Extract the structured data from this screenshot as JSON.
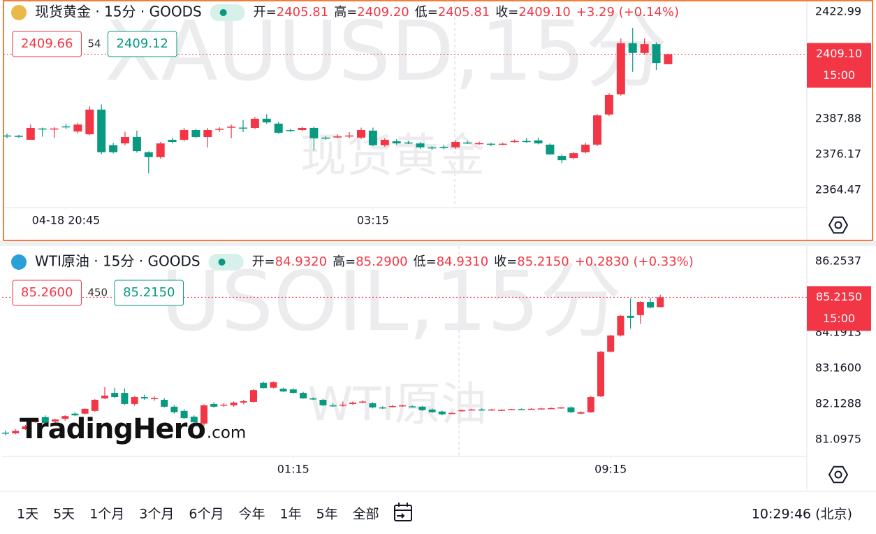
{
  "chart_data": [
    {
      "type": "candlestick",
      "title": "现货黄金 · 15分 · GOODS",
      "icon_color": "#e9b949",
      "ohlc_header": [
        {
          "label": "开=",
          "value": "2405.81"
        },
        {
          "label": "高=",
          "value": "2409.20"
        },
        {
          "label": "低=",
          "value": "2405.81"
        },
        {
          "label": "收=",
          "value": "2409.10"
        }
      ],
      "change": "+3.29 (+0.14%)",
      "bid": "2409.66",
      "spread": "54",
      "ask": "2409.12",
      "watermark": "XAUUSD,15分",
      "watermark_name": "现货黄金",
      "last_price": "2409.10",
      "countdown": "15:00",
      "up_color": "#f23645",
      "down_color": "#089981",
      "open": [
        2382.4,
        2382.3,
        2381.0,
        2384.7,
        2384.6,
        2385.4,
        2383.7,
        2382.8,
        2390.9,
        2379.2,
        2379.8,
        2381.9,
        2376.9,
        2375.3,
        2381.0,
        2381.0,
        2384.2,
        2381.9,
        2384.4,
        2385.1,
        2385.0,
        2384.9,
        2387.9,
        2386.3,
        2384.2,
        2384.2,
        2384.9,
        2381.7,
        2381.9,
        2382.2,
        2381.7,
        2384.0,
        2379.2,
        2380.5,
        2380.1,
        2379.8,
        2378.5,
        2378.6,
        2378.5,
        2380.1,
        2379.8,
        2379.7,
        2379.5,
        2380.3,
        2380.6,
        2380.8,
        2379.4,
        2375.7,
        2375.0,
        2376.9,
        2379.4,
        2389.3,
        2395.9,
        2412.7,
        2409.5,
        2412.4,
        2405.81
      ],
      "high": [
        2383.0,
        2382.6,
        2386.0,
        2385.0,
        2385.1,
        2386.3,
        2386.6,
        2392.0,
        2392.6,
        2380.0,
        2383.6,
        2384.0,
        2377.2,
        2380.3,
        2381.7,
        2384.9,
        2384.6,
        2384.9,
        2385.1,
        2386.0,
        2387.5,
        2388.5,
        2389.4,
        2386.8,
        2384.6,
        2385.3,
        2385.3,
        2382.2,
        2382.8,
        2383.5,
        2385.0,
        2385.0,
        2381.5,
        2381.2,
        2380.6,
        2380.3,
        2378.9,
        2379.3,
        2380.8,
        2380.6,
        2380.4,
        2380.0,
        2380.1,
        2381.1,
        2381.5,
        2381.7,
        2379.8,
        2376.2,
        2377.0,
        2380.0,
        2389.4,
        2396.3,
        2414.3,
        2417.7,
        2414.3,
        2413.0,
        2409.2
      ],
      "low": [
        2381.5,
        2381.6,
        2381.0,
        2382.0,
        2381.5,
        2384.5,
        2383.0,
        2382.5,
        2376.2,
        2376.5,
        2379.2,
        2376.8,
        2370.0,
        2374.8,
        2379.8,
        2380.5,
        2381.5,
        2378.5,
        2383.5,
        2381.5,
        2383.5,
        2384.5,
        2386.2,
        2383.0,
        2383.6,
        2383.8,
        2377.5,
        2381.0,
        2381.5,
        2381.5,
        2381.2,
        2378.9,
        2378.7,
        2379.4,
        2379.6,
        2378.0,
        2377.6,
        2378.0,
        2378.0,
        2379.6,
        2379.4,
        2378.9,
        2379.2,
        2380.0,
        2380.0,
        2379.5,
        2376.0,
        2373.3,
        2374.6,
        2376.5,
        2378.9,
        2388.8,
        2395.5,
        2403.3,
        2408.9,
        2403.9,
        2405.81
      ],
      "close": [
        2382.1,
        2382.0,
        2384.9,
        2384.4,
        2384.7,
        2385.1,
        2386.0,
        2390.9,
        2376.9,
        2376.9,
        2381.9,
        2377.3,
        2375.3,
        2379.8,
        2380.3,
        2384.2,
        2381.9,
        2384.2,
        2384.6,
        2385.3,
        2384.7,
        2387.9,
        2386.7,
        2383.3,
        2384.0,
        2384.9,
        2381.5,
        2381.6,
        2382.1,
        2382.4,
        2384.2,
        2379.2,
        2381.0,
        2379.8,
        2380.0,
        2378.5,
        2378.4,
        2378.5,
        2380.3,
        2380.0,
        2379.9,
        2379.5,
        2379.7,
        2380.6,
        2380.4,
        2379.8,
        2376.2,
        2374.3,
        2376.6,
        2379.4,
        2389.0,
        2395.7,
        2412.7,
        2409.5,
        2412.4,
        2406.2,
        2409.1
      ],
      "ylim": [
        2358.73,
        2426.89
      ],
      "yticks": [
        2422.99,
        2387.88,
        2376.17,
        2364.47
      ],
      "xticks": [
        {
          "value": 5,
          "label": "04-18 20:45"
        },
        {
          "value": 31,
          "label": "03:15"
        }
      ]
    },
    {
      "type": "candlestick",
      "title": "WTI原油 · 15分 · GOODS",
      "icon_color": "#2a9fd8",
      "ohlc_header": [
        {
          "label": "开=",
          "value": "84.9320"
        },
        {
          "label": "高=",
          "value": "85.2900"
        },
        {
          "label": "低=",
          "value": "84.9310"
        },
        {
          "label": "收=",
          "value": "85.2150"
        }
      ],
      "change": "+0.2830 (+0.33%)",
      "bid": "85.2600",
      "spread": "450",
      "ask": "85.2150",
      "watermark": "USOIL,15分",
      "watermark_name": "WTI原油",
      "last_price": "85.2150",
      "countdown": "15:00",
      "up_color": "#f23645",
      "down_color": "#089981",
      "open": [
        81.3,
        81.28,
        81.4,
        81.6,
        81.75,
        81.62,
        81.7,
        81.85,
        81.85,
        81.93,
        82.29,
        82.45,
        82.45,
        82.13,
        82.33,
        82.29,
        82.25,
        82.05,
        81.93,
        81.76,
        81.56,
        82.13,
        82.09,
        82.09,
        82.17,
        82.19,
        82.74,
        82.6,
        82.57,
        82.55,
        82.45,
        82.29,
        82.25,
        82.09,
        82.1,
        82.13,
        82.19,
        82.15,
        82.03,
        82.05,
        82.07,
        82.06,
        82.05,
        81.97,
        81.91,
        81.85,
        81.92,
        81.95,
        81.97,
        81.96,
        81.95,
        81.96,
        81.98,
        81.97,
        81.99,
        82.0,
        82.0,
        82.03,
        81.85,
        81.89,
        82.35,
        83.64,
        84.11,
        84.68,
        84.7,
        85.08,
        84.932
      ],
      "high": [
        81.36,
        81.4,
        81.52,
        81.72,
        81.8,
        81.7,
        81.8,
        81.9,
        82.0,
        82.27,
        82.62,
        82.6,
        82.58,
        82.35,
        82.4,
        82.35,
        82.3,
        82.1,
        81.98,
        81.8,
        82.12,
        82.18,
        82.15,
        82.2,
        82.25,
        82.56,
        82.78,
        82.78,
        82.6,
        82.58,
        82.48,
        82.32,
        82.28,
        82.15,
        82.2,
        82.2,
        82.24,
        82.18,
        82.06,
        82.1,
        82.11,
        82.09,
        82.08,
        82.0,
        81.94,
        81.88,
        81.97,
        81.99,
        82.0,
        81.99,
        81.98,
        81.99,
        82.0,
        82.01,
        82.02,
        82.03,
        82.04,
        82.06,
        81.92,
        82.36,
        83.66,
        84.13,
        84.7,
        85.18,
        85.1,
        85.2,
        85.29
      ],
      "low": [
        81.22,
        81.25,
        81.38,
        81.58,
        81.55,
        81.58,
        81.65,
        81.78,
        81.82,
        81.9,
        82.27,
        82.3,
        82.1,
        82.08,
        82.25,
        82.22,
        82.03,
        81.85,
        81.7,
        81.58,
        81.5,
        82.02,
        82.05,
        82.05,
        82.12,
        82.17,
        82.58,
        82.58,
        82.48,
        82.43,
        82.28,
        82.25,
        82.07,
        82.05,
        82.05,
        82.1,
        82.15,
        82.0,
        81.99,
        82.03,
        82.05,
        82.03,
        81.93,
        81.87,
        81.8,
        81.84,
        81.9,
        81.94,
        81.95,
        81.94,
        81.93,
        81.95,
        81.96,
        81.96,
        81.98,
        81.99,
        81.99,
        81.87,
        81.83,
        81.87,
        82.33,
        83.62,
        84.08,
        84.31,
        84.45,
        84.9,
        84.931
      ],
      "close": [
        81.28,
        81.35,
        81.48,
        81.68,
        81.58,
        81.68,
        81.78,
        81.8,
        81.99,
        82.25,
        82.37,
        82.33,
        82.13,
        82.33,
        82.29,
        82.3,
        82.05,
        81.89,
        81.72,
        81.6,
        82.09,
        82.05,
        82.11,
        82.17,
        82.21,
        82.53,
        82.59,
        82.76,
        82.49,
        82.45,
        82.29,
        82.27,
        82.09,
        82.08,
        82.11,
        82.17,
        82.2,
        82.03,
        82.02,
        82.07,
        82.09,
        82.05,
        81.95,
        81.89,
        81.83,
        81.87,
        81.95,
        81.97,
        81.96,
        81.97,
        81.96,
        81.98,
        81.97,
        81.99,
        82.0,
        82.01,
        82.03,
        81.89,
        81.89,
        82.33,
        83.64,
        84.11,
        84.68,
        84.62,
        85.08,
        84.92,
        85.215
      ],
      "ylim": [
        80.612,
        86.699
      ],
      "yticks": [
        86.2537,
        84.1913,
        {
          "value": 83.16,
          "label": "83.1600"
        },
        82.1288,
        81.0975
      ],
      "xticks": [
        {
          "value": 29,
          "label": "01:15"
        },
        {
          "value": 61,
          "label": "09:15"
        }
      ]
    }
  ],
  "logo_main": "TradingHero",
  "logo_suffix": ".com",
  "toolbar": {
    "ranges": [
      "1天",
      "5天",
      "1个月",
      "3个月",
      "6个月",
      "今年",
      "1年",
      "5年",
      "全部"
    ],
    "clock": "10:29:46 (北京)"
  }
}
